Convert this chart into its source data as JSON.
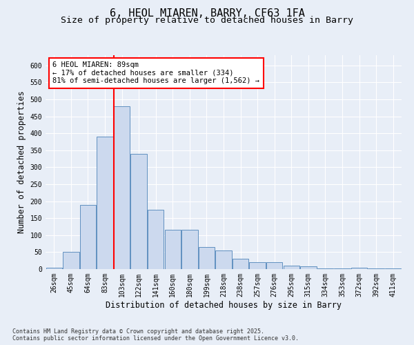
{
  "title": "6, HEOL MIAREN, BARRY, CF63 1FA",
  "subtitle": "Size of property relative to detached houses in Barry",
  "xlabel": "Distribution of detached houses by size in Barry",
  "ylabel": "Number of detached properties",
  "categories": [
    "26sqm",
    "45sqm",
    "64sqm",
    "83sqm",
    "103sqm",
    "122sqm",
    "141sqm",
    "160sqm",
    "180sqm",
    "199sqm",
    "218sqm",
    "238sqm",
    "257sqm",
    "276sqm",
    "295sqm",
    "315sqm",
    "334sqm",
    "353sqm",
    "372sqm",
    "392sqm",
    "411sqm"
  ],
  "values": [
    5,
    50,
    190,
    390,
    480,
    340,
    175,
    115,
    115,
    65,
    55,
    30,
    20,
    20,
    10,
    8,
    3,
    3,
    5,
    2,
    3
  ],
  "bar_color": "#ccd9ee",
  "bar_edge_color": "#6090c0",
  "annotation_line1": "6 HEOL MIAREN: 89sqm",
  "annotation_line2": "← 17% of detached houses are smaller (334)",
  "annotation_line3": "81% of semi-detached houses are larger (1,562) →",
  "annotation_box_facecolor": "white",
  "annotation_box_edgecolor": "red",
  "vline_x": 3.52,
  "vline_color": "red",
  "ylim_max": 630,
  "yticks": [
    0,
    50,
    100,
    150,
    200,
    250,
    300,
    350,
    400,
    450,
    500,
    550,
    600
  ],
  "footer_text": "Contains HM Land Registry data © Crown copyright and database right 2025.\nContains public sector information licensed under the Open Government Licence v3.0.",
  "background_color": "#e8eef7",
  "grid_color": "#ffffff",
  "title_fontsize": 11,
  "subtitle_fontsize": 9.5,
  "label_fontsize": 8.5,
  "tick_fontsize": 7,
  "footer_fontsize": 6,
  "annot_fontsize": 7.5
}
